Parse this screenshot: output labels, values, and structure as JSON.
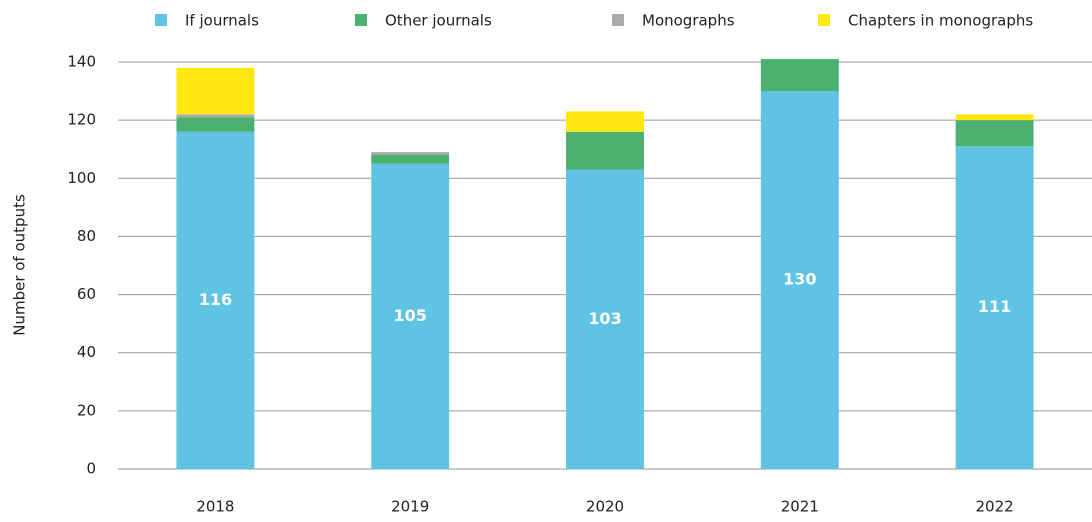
{
  "chart_data": {
    "type": "stacked_bar",
    "y_label": "Number of outputs",
    "categories": [
      "2018",
      "2019",
      "2020",
      "2021",
      "2022"
    ],
    "series": [
      {
        "name": "If journals",
        "color": "#5fc3e4",
        "values": [
          116,
          105,
          103,
          130,
          111
        ]
      },
      {
        "name": "Other journals",
        "color": "#4cb070",
        "values": [
          5,
          3,
          13,
          11,
          9
        ]
      },
      {
        "name": "Monographs",
        "color": "#aaaaaa",
        "values": [
          1,
          1,
          0,
          0,
          0
        ]
      },
      {
        "name": "Chapters in monographs",
        "color": "#ffe812",
        "values": [
          16,
          0,
          7,
          0,
          2
        ]
      }
    ],
    "data_labels_series": 0,
    "ylim": [
      0,
      140
    ],
    "yticks": [
      0,
      20,
      40,
      60,
      80,
      100,
      120,
      140
    ],
    "grid": true
  }
}
